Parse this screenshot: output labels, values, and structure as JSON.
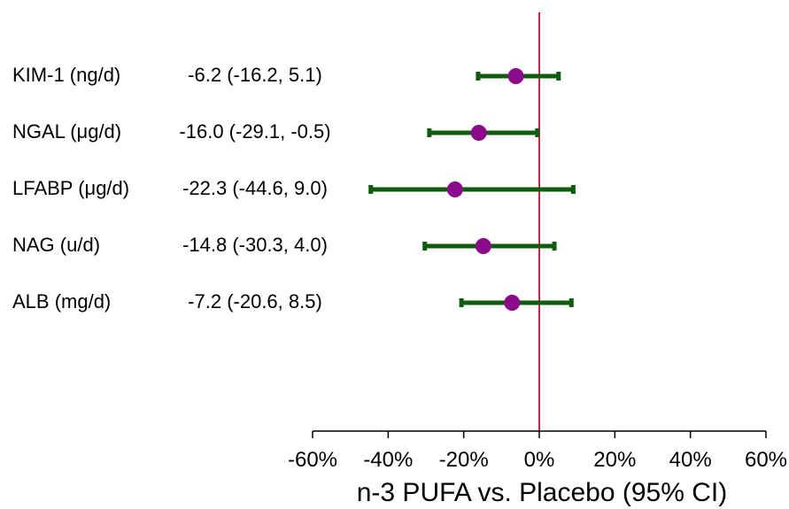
{
  "chart_data": {
    "type": "forest",
    "xlabel": "n-3 PUFA vs. Placebo (95% CI)",
    "xlim": [
      -60,
      60
    ],
    "x_ticks": [
      -60,
      -40,
      -20,
      0,
      20,
      40,
      60
    ],
    "x_tick_labels": [
      "-60%",
      "-40%",
      "-20%",
      "0%",
      "20%",
      "40%",
      "60%"
    ],
    "reference_line": 0,
    "rows": [
      {
        "label": "KIM-1 (ng/d)",
        "estimate_text": "-6.2 (-16.2, 5.1)",
        "estimate": -6.2,
        "lower": -16.2,
        "upper": 5.1
      },
      {
        "label": "NGAL (μg/d)",
        "estimate_text": "-16.0 (-29.1, -0.5)",
        "estimate": -16.0,
        "lower": -29.1,
        "upper": -0.5
      },
      {
        "label": "LFABP (μg/d)",
        "estimate_text": "-22.3 (-44.6, 9.0)",
        "estimate": -22.3,
        "lower": -44.6,
        "upper": 9.0
      },
      {
        "label": "NAG (u/d)",
        "estimate_text": "-14.8 (-30.3, 4.0)",
        "estimate": -14.8,
        "lower": -30.3,
        "upper": 4.0
      },
      {
        "label": "ALB (mg/d)",
        "estimate_text": "-7.2 (-20.6, 8.5)",
        "estimate": -7.2,
        "lower": -20.6,
        "upper": 8.5
      }
    ],
    "colors": {
      "ci_line": "#0f5c0f",
      "point": "#8b0a8b",
      "reference_line": "#d81b46",
      "axis": "#000000"
    }
  }
}
